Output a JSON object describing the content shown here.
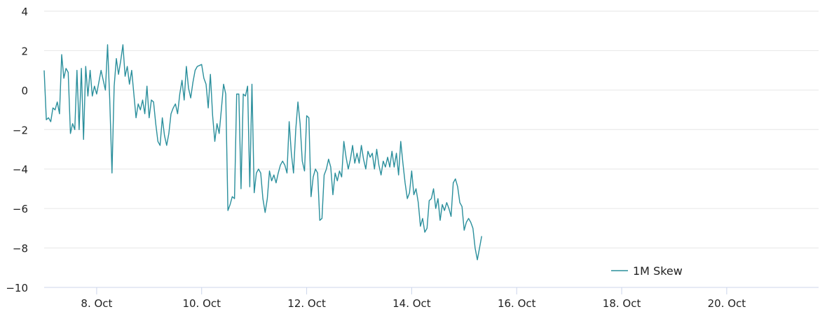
{
  "chart_data": {
    "type": "line",
    "title": "",
    "xlabel": "",
    "ylabel": "",
    "ylim": [
      -10,
      4
    ],
    "y_ticks": [
      "4",
      "2",
      "0",
      "−2",
      "−4",
      "−6",
      "−8",
      "−10"
    ],
    "y_tick_values": [
      4,
      2,
      0,
      -2,
      -4,
      -6,
      -8,
      -10
    ],
    "x_ticks": [
      "8. Oct",
      "10. Oct",
      "12. Oct",
      "14. Oct",
      "16. Oct",
      "18. Oct",
      "20. Oct"
    ],
    "x_tick_values": [
      "2021-10-08",
      "2021-10-10",
      "2021-10-12",
      "2021-10-14",
      "2021-10-16",
      "2021-10-18",
      "2021-10-20"
    ],
    "xlim": [
      "2021-10-07T00:00",
      "2021-10-21T18:00"
    ],
    "grid": true,
    "legend_position": "bottom-right",
    "series": [
      {
        "name": "1M Skew",
        "color": "#2a8f9c",
        "points": [
          [
            "2021-10-07T00:00",
            1.0
          ],
          [
            "2021-10-07T01:00",
            -1.5
          ],
          [
            "2021-10-07T02:00",
            -1.4
          ],
          [
            "2021-10-07T03:00",
            -1.6
          ],
          [
            "2021-10-07T04:00",
            -0.9
          ],
          [
            "2021-10-07T05:00",
            -1.0
          ],
          [
            "2021-10-07T06:00",
            -0.6
          ],
          [
            "2021-10-07T07:00",
            -1.2
          ],
          [
            "2021-10-07T08:00",
            1.8
          ],
          [
            "2021-10-07T09:00",
            0.6
          ],
          [
            "2021-10-07T10:00",
            1.1
          ],
          [
            "2021-10-07T11:00",
            0.9
          ],
          [
            "2021-10-07T12:00",
            -2.2
          ],
          [
            "2021-10-07T13:00",
            -1.7
          ],
          [
            "2021-10-07T14:00",
            -2.0
          ],
          [
            "2021-10-07T15:00",
            1.0
          ],
          [
            "2021-10-07T16:00",
            -2.0
          ],
          [
            "2021-10-07T17:00",
            1.1
          ],
          [
            "2021-10-07T18:00",
            -2.5
          ],
          [
            "2021-10-07T19:00",
            1.2
          ],
          [
            "2021-10-07T20:00",
            -0.3
          ],
          [
            "2021-10-07T21:00",
            1.0
          ],
          [
            "2021-10-07T22:00",
            -0.3
          ],
          [
            "2021-10-07T23:00",
            0.2
          ],
          [
            "2021-10-08T00:00",
            -0.2
          ],
          [
            "2021-10-08T02:00",
            1.0
          ],
          [
            "2021-10-08T04:00",
            0.0
          ],
          [
            "2021-10-08T05:00",
            2.3
          ],
          [
            "2021-10-08T06:00",
            -0.5
          ],
          [
            "2021-10-08T07:00",
            -4.2
          ],
          [
            "2021-10-08T08:00",
            0.2
          ],
          [
            "2021-10-08T09:00",
            1.6
          ],
          [
            "2021-10-08T10:00",
            0.8
          ],
          [
            "2021-10-08T11:00",
            1.5
          ],
          [
            "2021-10-08T12:00",
            2.3
          ],
          [
            "2021-10-08T13:00",
            0.7
          ],
          [
            "2021-10-08T14:00",
            1.2
          ],
          [
            "2021-10-08T15:00",
            0.3
          ],
          [
            "2021-10-08T16:00",
            1.0
          ],
          [
            "2021-10-08T17:00",
            -0.2
          ],
          [
            "2021-10-08T18:00",
            -1.4
          ],
          [
            "2021-10-08T19:00",
            -0.7
          ],
          [
            "2021-10-08T20:00",
            -1.0
          ],
          [
            "2021-10-08T21:00",
            -0.5
          ],
          [
            "2021-10-08T22:00",
            -1.2
          ],
          [
            "2021-10-08T23:00",
            0.2
          ],
          [
            "2021-10-09T00:00",
            -1.4
          ],
          [
            "2021-10-09T01:00",
            -0.5
          ],
          [
            "2021-10-09T02:00",
            -0.6
          ],
          [
            "2021-10-09T03:00",
            -1.7
          ],
          [
            "2021-10-09T04:00",
            -2.6
          ],
          [
            "2021-10-09T05:00",
            -2.8
          ],
          [
            "2021-10-09T06:00",
            -1.4
          ],
          [
            "2021-10-09T07:00",
            -2.3
          ],
          [
            "2021-10-09T08:00",
            -2.8
          ],
          [
            "2021-10-09T09:00",
            -2.2
          ],
          [
            "2021-10-09T10:00",
            -1.2
          ],
          [
            "2021-10-09T11:00",
            -0.9
          ],
          [
            "2021-10-09T12:00",
            -0.7
          ],
          [
            "2021-10-09T13:00",
            -1.2
          ],
          [
            "2021-10-09T14:00",
            -0.2
          ],
          [
            "2021-10-09T15:00",
            0.5
          ],
          [
            "2021-10-09T16:00",
            -0.5
          ],
          [
            "2021-10-09T17:00",
            1.2
          ],
          [
            "2021-10-09T18:00",
            0.1
          ],
          [
            "2021-10-09T19:00",
            -0.4
          ],
          [
            "2021-10-09T20:00",
            0.4
          ],
          [
            "2021-10-09T21:00",
            1.0
          ],
          [
            "2021-10-09T22:00",
            1.2
          ],
          [
            "2021-10-10T00:00",
            1.3
          ],
          [
            "2021-10-10T01:00",
            0.6
          ],
          [
            "2021-10-10T02:00",
            0.3
          ],
          [
            "2021-10-10T03:00",
            -0.9
          ],
          [
            "2021-10-10T04:00",
            0.8
          ],
          [
            "2021-10-10T05:00",
            -1.3
          ],
          [
            "2021-10-10T06:00",
            -2.6
          ],
          [
            "2021-10-10T07:00",
            -1.7
          ],
          [
            "2021-10-10T08:00",
            -2.2
          ],
          [
            "2021-10-10T09:00",
            -1.0
          ],
          [
            "2021-10-10T10:00",
            0.3
          ],
          [
            "2021-10-10T11:00",
            -0.2
          ],
          [
            "2021-10-10T12:00",
            -6.1
          ],
          [
            "2021-10-10T13:00",
            -5.8
          ],
          [
            "2021-10-10T14:00",
            -5.4
          ],
          [
            "2021-10-10T15:00",
            -5.5
          ],
          [
            "2021-10-10T16:00",
            -0.2
          ],
          [
            "2021-10-10T17:00",
            -0.2
          ],
          [
            "2021-10-10T18:00",
            -5.0
          ],
          [
            "2021-10-10T19:00",
            -0.2
          ],
          [
            "2021-10-10T20:00",
            -0.3
          ],
          [
            "2021-10-10T21:00",
            0.2
          ],
          [
            "2021-10-10T22:00",
            -4.9
          ],
          [
            "2021-10-10T23:00",
            0.3
          ],
          [
            "2021-10-11T00:00",
            -5.2
          ],
          [
            "2021-10-11T01:00",
            -4.2
          ],
          [
            "2021-10-11T02:00",
            -4.0
          ],
          [
            "2021-10-11T03:00",
            -4.2
          ],
          [
            "2021-10-11T04:00",
            -5.5
          ],
          [
            "2021-10-11T05:00",
            -6.2
          ],
          [
            "2021-10-11T06:00",
            -5.5
          ],
          [
            "2021-10-11T07:00",
            -4.1
          ],
          [
            "2021-10-11T08:00",
            -4.6
          ],
          [
            "2021-10-11T09:00",
            -4.3
          ],
          [
            "2021-10-11T10:00",
            -4.7
          ],
          [
            "2021-10-11T11:00",
            -4.2
          ],
          [
            "2021-10-11T12:00",
            -3.8
          ],
          [
            "2021-10-11T13:00",
            -3.6
          ],
          [
            "2021-10-11T14:00",
            -3.8
          ],
          [
            "2021-10-11T15:00",
            -4.2
          ],
          [
            "2021-10-11T16:00",
            -1.6
          ],
          [
            "2021-10-11T17:00",
            -3.2
          ],
          [
            "2021-10-11T18:00",
            -4.2
          ],
          [
            "2021-10-11T19:00",
            -2.0
          ],
          [
            "2021-10-11T20:00",
            -0.6
          ],
          [
            "2021-10-11T21:00",
            -1.7
          ],
          [
            "2021-10-11T22:00",
            -3.6
          ],
          [
            "2021-10-11T23:00",
            -4.1
          ],
          [
            "2021-10-12T00:00",
            -1.3
          ],
          [
            "2021-10-12T01:00",
            -1.4
          ],
          [
            "2021-10-12T02:00",
            -5.4
          ],
          [
            "2021-10-12T03:00",
            -4.4
          ],
          [
            "2021-10-12T04:00",
            -4.0
          ],
          [
            "2021-10-12T05:00",
            -4.2
          ],
          [
            "2021-10-12T06:00",
            -6.6
          ],
          [
            "2021-10-12T07:00",
            -6.5
          ],
          [
            "2021-10-12T08:00",
            -4.3
          ],
          [
            "2021-10-12T09:00",
            -4.0
          ],
          [
            "2021-10-12T10:00",
            -3.5
          ],
          [
            "2021-10-12T11:00",
            -3.9
          ],
          [
            "2021-10-12T12:00",
            -5.3
          ],
          [
            "2021-10-12T13:00",
            -4.2
          ],
          [
            "2021-10-12T14:00",
            -4.6
          ],
          [
            "2021-10-12T15:00",
            -4.1
          ],
          [
            "2021-10-12T16:00",
            -4.4
          ],
          [
            "2021-10-12T17:00",
            -2.6
          ],
          [
            "2021-10-12T18:00",
            -3.4
          ],
          [
            "2021-10-12T19:00",
            -4.0
          ],
          [
            "2021-10-12T20:00",
            -3.5
          ],
          [
            "2021-10-12T21:00",
            -2.8
          ],
          [
            "2021-10-12T22:00",
            -3.7
          ],
          [
            "2021-10-12T23:00",
            -3.2
          ],
          [
            "2021-10-13T00:00",
            -3.7
          ],
          [
            "2021-10-13T01:00",
            -2.8
          ],
          [
            "2021-10-13T02:00",
            -3.5
          ],
          [
            "2021-10-13T03:00",
            -4.0
          ],
          [
            "2021-10-13T04:00",
            -3.1
          ],
          [
            "2021-10-13T05:00",
            -3.4
          ],
          [
            "2021-10-13T06:00",
            -3.2
          ],
          [
            "2021-10-13T07:00",
            -4.0
          ],
          [
            "2021-10-13T08:00",
            -3.0
          ],
          [
            "2021-10-13T09:00",
            -3.8
          ],
          [
            "2021-10-13T10:00",
            -4.3
          ],
          [
            "2021-10-13T11:00",
            -3.6
          ],
          [
            "2021-10-13T12:00",
            -3.9
          ],
          [
            "2021-10-13T13:00",
            -3.4
          ],
          [
            "2021-10-13T14:00",
            -3.9
          ],
          [
            "2021-10-13T15:00",
            -3.1
          ],
          [
            "2021-10-13T16:00",
            -3.9
          ],
          [
            "2021-10-13T17:00",
            -3.2
          ],
          [
            "2021-10-13T18:00",
            -4.3
          ],
          [
            "2021-10-13T19:00",
            -2.6
          ],
          [
            "2021-10-13T20:00",
            -3.7
          ],
          [
            "2021-10-13T21:00",
            -4.7
          ],
          [
            "2021-10-13T22:00",
            -5.5
          ],
          [
            "2021-10-13T23:00",
            -5.2
          ],
          [
            "2021-10-14T00:00",
            -4.1
          ],
          [
            "2021-10-14T01:00",
            -5.3
          ],
          [
            "2021-10-14T02:00",
            -5.0
          ],
          [
            "2021-10-14T03:00",
            -5.7
          ],
          [
            "2021-10-14T04:00",
            -6.9
          ],
          [
            "2021-10-14T05:00",
            -6.5
          ],
          [
            "2021-10-14T06:00",
            -7.2
          ],
          [
            "2021-10-14T07:00",
            -7.0
          ],
          [
            "2021-10-14T08:00",
            -5.6
          ],
          [
            "2021-10-14T09:00",
            -5.5
          ],
          [
            "2021-10-14T10:00",
            -5.0
          ],
          [
            "2021-10-14T11:00",
            -6.0
          ],
          [
            "2021-10-14T12:00",
            -5.5
          ],
          [
            "2021-10-14T13:00",
            -6.6
          ],
          [
            "2021-10-14T14:00",
            -5.8
          ],
          [
            "2021-10-14T15:00",
            -6.1
          ],
          [
            "2021-10-14T16:00",
            -5.7
          ],
          [
            "2021-10-14T17:00",
            -6.0
          ],
          [
            "2021-10-14T18:00",
            -6.4
          ],
          [
            "2021-10-14T19:00",
            -4.7
          ],
          [
            "2021-10-14T20:00",
            -4.5
          ],
          [
            "2021-10-14T21:00",
            -4.9
          ],
          [
            "2021-10-14T22:00",
            -5.7
          ],
          [
            "2021-10-14T23:00",
            -5.9
          ],
          [
            "2021-10-15T00:00",
            -7.1
          ],
          [
            "2021-10-15T01:00",
            -6.7
          ],
          [
            "2021-10-15T02:00",
            -6.5
          ],
          [
            "2021-10-15T03:00",
            -6.7
          ],
          [
            "2021-10-15T04:00",
            -7.0
          ],
          [
            "2021-10-15T05:00",
            -8.0
          ],
          [
            "2021-10-15T06:00",
            -8.6
          ],
          [
            "2021-10-15T07:00",
            -8.0
          ],
          [
            "2021-10-15T08:00",
            -7.4
          ]
        ]
      }
    ]
  }
}
